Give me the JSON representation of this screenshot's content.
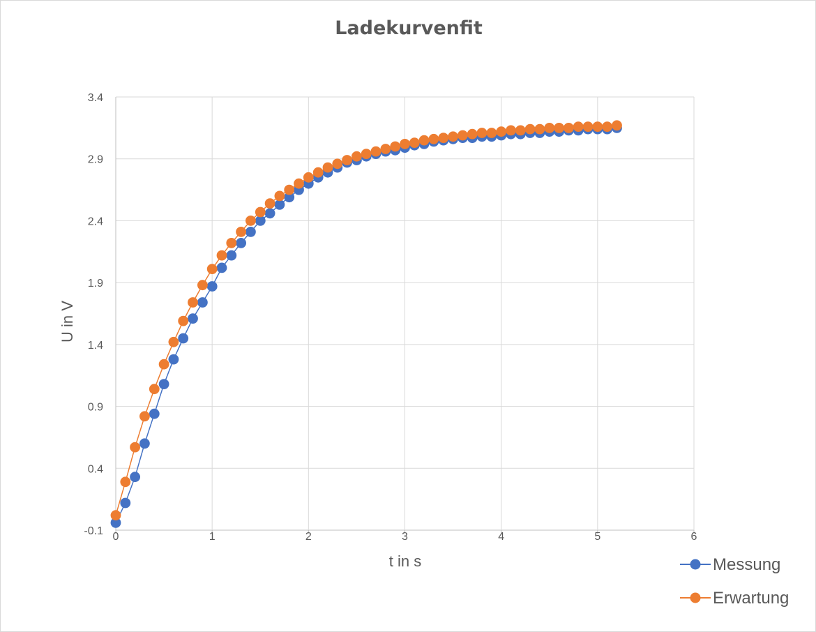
{
  "chart_data": {
    "type": "scatter",
    "title": "Ladekurvenfit",
    "xlabel": "t in s",
    "ylabel": "U in V",
    "xlim": [
      0,
      6
    ],
    "ylim": [
      -0.1,
      3.4
    ],
    "x_ticks": [
      "0",
      "1",
      "2",
      "3",
      "4",
      "5",
      "6"
    ],
    "y_ticks": [
      "-0.1",
      "0.4",
      "0.9",
      "1.4",
      "1.9",
      "2.4",
      "2.9",
      "3.4"
    ],
    "grid": true,
    "legend_position": "bottom-right",
    "x": [
      0,
      0.1,
      0.2,
      0.3,
      0.4,
      0.5,
      0.6,
      0.7,
      0.8,
      0.9,
      1.0,
      1.1,
      1.2,
      1.3,
      1.4,
      1.5,
      1.6,
      1.7,
      1.8,
      1.9,
      2.0,
      2.1,
      2.2,
      2.3,
      2.4,
      2.5,
      2.6,
      2.7,
      2.8,
      2.9,
      3.0,
      3.1,
      3.2,
      3.3,
      3.4,
      3.5,
      3.6,
      3.7,
      3.8,
      3.9,
      4.0,
      4.1,
      4.2,
      4.3,
      4.4,
      4.5,
      4.6,
      4.7,
      4.8,
      4.9,
      5.0,
      5.1,
      5.2
    ],
    "series": [
      {
        "name": "Messung",
        "color": "#4472c4",
        "values": [
          -0.04,
          0.12,
          0.33,
          0.6,
          0.84,
          1.08,
          1.28,
          1.45,
          1.61,
          1.74,
          1.87,
          2.02,
          2.12,
          2.22,
          2.31,
          2.4,
          2.46,
          2.53,
          2.59,
          2.65,
          2.7,
          2.75,
          2.79,
          2.83,
          2.87,
          2.89,
          2.92,
          2.94,
          2.96,
          2.97,
          2.99,
          3.01,
          3.02,
          3.04,
          3.05,
          3.06,
          3.07,
          3.07,
          3.08,
          3.08,
          3.09,
          3.1,
          3.1,
          3.11,
          3.11,
          3.12,
          3.12,
          3.13,
          3.13,
          3.14,
          3.14,
          3.14,
          3.15
        ]
      },
      {
        "name": "Erwartung",
        "color": "#ed7d31",
        "values": [
          0.02,
          0.29,
          0.57,
          0.82,
          1.04,
          1.24,
          1.42,
          1.59,
          1.74,
          1.88,
          2.01,
          2.12,
          2.22,
          2.31,
          2.4,
          2.47,
          2.54,
          2.6,
          2.65,
          2.7,
          2.75,
          2.79,
          2.83,
          2.86,
          2.89,
          2.92,
          2.94,
          2.96,
          2.98,
          3.0,
          3.02,
          3.03,
          3.05,
          3.06,
          3.07,
          3.08,
          3.09,
          3.1,
          3.11,
          3.11,
          3.12,
          3.13,
          3.13,
          3.14,
          3.14,
          3.15,
          3.15,
          3.15,
          3.16,
          3.16,
          3.16,
          3.16,
          3.17
        ]
      }
    ]
  }
}
